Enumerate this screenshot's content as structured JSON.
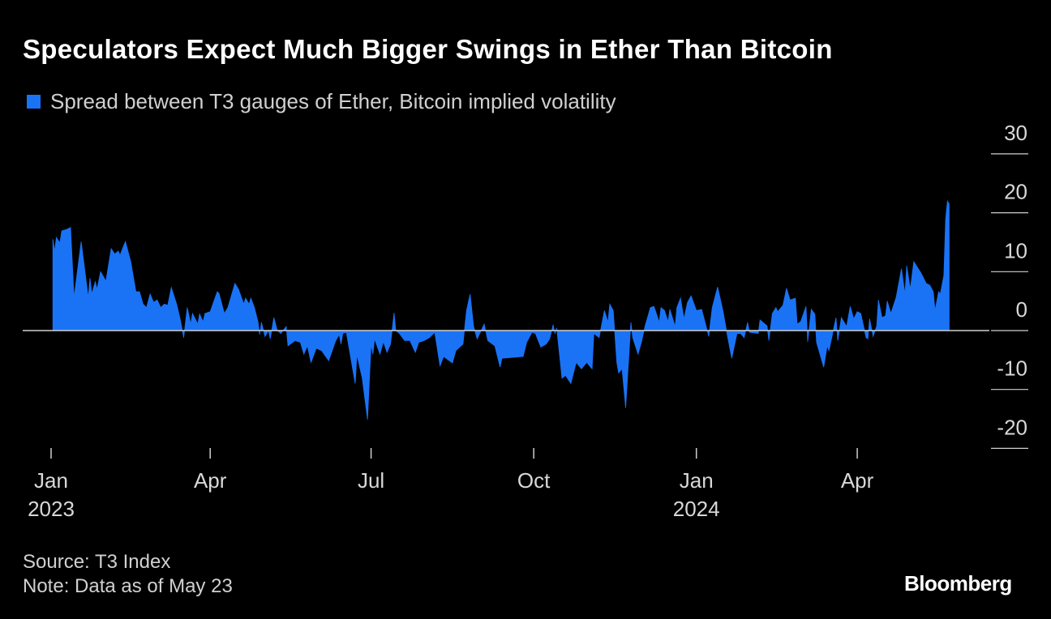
{
  "title": "Speculators Expect Much Bigger Swings in Ether Than Bitcoin",
  "source": "Source: T3 Index",
  "note": "Note: Data as of May 23",
  "logo": "Bloomberg",
  "colors": {
    "series": "#1a73f5",
    "background": "#000000",
    "zero_line": "#cfcfcf"
  },
  "chart_data": {
    "type": "area",
    "title": "Speculators Expect Much Bigger Swings in Ether Than Bitcoin",
    "legend": [
      {
        "name": "Spread between T3 gauges of Ether, Bitcoin implied volatility",
        "color": "#1a73f5"
      }
    ],
    "legend_placement": "top-left",
    "ylim": [
      -20,
      30
    ],
    "yticks": [
      30,
      20,
      10,
      0,
      -10,
      -20
    ],
    "ytick_labels": [
      "30",
      "20",
      "10",
      "0",
      "-10",
      "-20"
    ],
    "y_axis_side": "right",
    "xlim": [
      "2023-01-01",
      "2024-06-15"
    ],
    "xticks": [
      {
        "date": "2023-01-01",
        "label": "Jan",
        "year": "2023"
      },
      {
        "date": "2023-04-01",
        "label": "Apr",
        "year": ""
      },
      {
        "date": "2023-07-01",
        "label": "Jul",
        "year": ""
      },
      {
        "date": "2023-10-01",
        "label": "Oct",
        "year": ""
      },
      {
        "date": "2024-01-01",
        "label": "Jan",
        "year": "2024"
      },
      {
        "date": "2024-04-01",
        "label": "Apr",
        "year": ""
      }
    ],
    "grid": false,
    "series": [
      {
        "name": "Spread between T3 gauges of Ether, Bitcoin implied volatility",
        "points": [
          [
            "2023-01-02",
            15.5
          ],
          [
            "2023-01-03",
            13.5
          ],
          [
            "2023-01-04",
            15.8
          ],
          [
            "2023-01-06",
            14.9
          ],
          [
            "2023-01-07",
            16.9
          ],
          [
            "2023-01-10",
            17.2
          ],
          [
            "2023-01-12",
            17.5
          ],
          [
            "2023-01-14",
            5.6
          ],
          [
            "2023-01-18",
            15.1
          ],
          [
            "2023-01-22",
            5.6
          ],
          [
            "2023-01-23",
            8.9
          ],
          [
            "2023-01-24",
            6.2
          ],
          [
            "2023-01-26",
            8.3
          ],
          [
            "2023-01-27",
            7
          ],
          [
            "2023-01-29",
            10
          ],
          [
            "2023-02-01",
            8.4
          ],
          [
            "2023-02-04",
            13.9
          ],
          [
            "2023-02-06",
            13
          ],
          [
            "2023-02-08",
            13.5
          ],
          [
            "2023-02-09",
            12.8
          ],
          [
            "2023-02-12",
            15.1
          ],
          [
            "2023-02-15",
            11.8
          ],
          [
            "2023-02-18",
            6.6
          ],
          [
            "2023-02-20",
            6.6
          ],
          [
            "2023-02-22",
            4.5
          ],
          [
            "2023-02-24",
            3.9
          ],
          [
            "2023-02-26",
            6.2
          ],
          [
            "2023-02-28",
            4.8
          ],
          [
            "2023-03-02",
            5.2
          ],
          [
            "2023-03-04",
            3.9
          ],
          [
            "2023-03-06",
            4.5
          ],
          [
            "2023-03-08",
            4.3
          ],
          [
            "2023-03-10",
            7.3
          ],
          [
            "2023-03-13",
            4.5
          ],
          [
            "2023-03-15",
            2
          ],
          [
            "2023-03-17",
            -1.2
          ],
          [
            "2023-03-19",
            3.9
          ],
          [
            "2023-03-21",
            1.1
          ],
          [
            "2023-03-22",
            2.9
          ],
          [
            "2023-03-25",
            1.1
          ],
          [
            "2023-03-26",
            2.8
          ],
          [
            "2023-03-28",
            1.5
          ],
          [
            "2023-03-29",
            2.9
          ],
          [
            "2023-04-01",
            3.2
          ],
          [
            "2023-04-05",
            6.6
          ],
          [
            "2023-04-06",
            6.3
          ],
          [
            "2023-04-09",
            2.9
          ],
          [
            "2023-04-11",
            3.9
          ],
          [
            "2023-04-15",
            8
          ],
          [
            "2023-04-17",
            7
          ],
          [
            "2023-04-20",
            4.5
          ],
          [
            "2023-04-21",
            5.5
          ],
          [
            "2023-04-23",
            4.5
          ],
          [
            "2023-04-24",
            5.5
          ],
          [
            "2023-04-26",
            3.9
          ],
          [
            "2023-04-28",
            1.5
          ],
          [
            "2023-04-29",
            -0.7
          ],
          [
            "2023-04-30",
            1.4
          ],
          [
            "2023-05-02",
            -1
          ],
          [
            "2023-05-04",
            0
          ],
          [
            "2023-05-05",
            -1.4
          ],
          [
            "2023-05-07",
            2.2
          ],
          [
            "2023-05-09",
            0
          ],
          [
            "2023-05-11",
            -0.5
          ],
          [
            "2023-05-14",
            0.7
          ],
          [
            "2023-05-15",
            -2.6
          ],
          [
            "2023-05-19",
            -1.7
          ],
          [
            "2023-05-22",
            -2
          ],
          [
            "2023-05-24",
            -4
          ],
          [
            "2023-05-26",
            -2.6
          ],
          [
            "2023-05-28",
            -5.4
          ],
          [
            "2023-05-31",
            -3
          ],
          [
            "2023-06-03",
            -3.4
          ],
          [
            "2023-06-07",
            -5.1
          ],
          [
            "2023-06-11",
            -1.7
          ],
          [
            "2023-06-13",
            -0.7
          ],
          [
            "2023-06-14",
            -2.3
          ],
          [
            "2023-06-15",
            -0.5
          ],
          [
            "2023-06-17",
            -0.3
          ],
          [
            "2023-06-22",
            -9
          ],
          [
            "2023-06-23",
            -4.1
          ],
          [
            "2023-06-26",
            -8.1
          ],
          [
            "2023-06-29",
            -15.1
          ],
          [
            "2023-07-01",
            -2.3
          ],
          [
            "2023-07-02",
            -4
          ],
          [
            "2023-07-03",
            -1.4
          ],
          [
            "2023-07-06",
            -4
          ],
          [
            "2023-07-08",
            -1.9
          ],
          [
            "2023-07-10",
            -3.7
          ],
          [
            "2023-07-12",
            -2.3
          ],
          [
            "2023-07-14",
            3
          ],
          [
            "2023-07-15",
            0
          ],
          [
            "2023-07-17",
            -0.5
          ],
          [
            "2023-07-20",
            -1.7
          ],
          [
            "2023-07-23",
            -1.7
          ],
          [
            "2023-07-26",
            -3.7
          ],
          [
            "2023-07-28",
            -2
          ],
          [
            "2023-07-31",
            -1.7
          ],
          [
            "2023-08-03",
            -1.2
          ],
          [
            "2023-08-06",
            -0.3
          ],
          [
            "2023-08-09",
            -6
          ],
          [
            "2023-08-11",
            -4.4
          ],
          [
            "2023-08-16",
            -5.5
          ],
          [
            "2023-08-18",
            -3.4
          ],
          [
            "2023-08-22",
            -2.3
          ],
          [
            "2023-08-24",
            3.4
          ],
          [
            "2023-08-26",
            6.2
          ],
          [
            "2023-08-28",
            0.7
          ],
          [
            "2023-08-30",
            -1.4
          ],
          [
            "2023-09-03",
            1.1
          ],
          [
            "2023-09-05",
            -1.7
          ],
          [
            "2023-09-09",
            -2.6
          ],
          [
            "2023-09-12",
            -6.2
          ],
          [
            "2023-09-13",
            -4.7
          ],
          [
            "2023-09-25",
            -4.4
          ],
          [
            "2023-09-27",
            -2
          ],
          [
            "2023-09-30",
            -0.3
          ],
          [
            "2023-10-02",
            -0.5
          ],
          [
            "2023-10-05",
            -2.8
          ],
          [
            "2023-10-08",
            -2.3
          ],
          [
            "2023-10-10",
            -1.4
          ],
          [
            "2023-10-12",
            1
          ],
          [
            "2023-10-13",
            -0.5
          ],
          [
            "2023-10-14",
            0.4
          ],
          [
            "2023-10-17",
            -8.1
          ],
          [
            "2023-10-19",
            -7.6
          ],
          [
            "2023-10-22",
            -9
          ],
          [
            "2023-10-25",
            -5.4
          ],
          [
            "2023-10-28",
            -6.5
          ],
          [
            "2023-10-31",
            -5.4
          ],
          [
            "2023-11-03",
            -6.5
          ],
          [
            "2023-11-04",
            -0.5
          ],
          [
            "2023-11-07",
            -1.2
          ],
          [
            "2023-11-10",
            3.4
          ],
          [
            "2023-11-12",
            1.4
          ],
          [
            "2023-11-13",
            4.5
          ],
          [
            "2023-11-15",
            3.4
          ],
          [
            "2023-11-17",
            -5.4
          ],
          [
            "2023-11-18",
            -7.2
          ],
          [
            "2023-11-20",
            -6.5
          ],
          [
            "2023-11-22",
            -13.1
          ],
          [
            "2023-11-25",
            1.4
          ],
          [
            "2023-11-26",
            -1.2
          ],
          [
            "2023-11-29",
            -4
          ],
          [
            "2023-12-01",
            -1.9
          ],
          [
            "2023-12-03",
            0.8
          ],
          [
            "2023-12-06",
            3.9
          ],
          [
            "2023-12-08",
            4.1
          ],
          [
            "2023-12-11",
            1.4
          ],
          [
            "2023-12-12",
            3.9
          ],
          [
            "2023-12-14",
            3.4
          ],
          [
            "2023-12-16",
            1.5
          ],
          [
            "2023-12-17",
            3.6
          ],
          [
            "2023-12-20",
            0.7
          ],
          [
            "2023-12-21",
            3.9
          ],
          [
            "2023-12-23",
            5.5
          ],
          [
            "2023-12-25",
            2
          ],
          [
            "2023-12-27",
            4.8
          ],
          [
            "2023-12-29",
            5.9
          ],
          [
            "2024-01-01",
            3.4
          ],
          [
            "2024-01-04",
            3.6
          ],
          [
            "2024-01-08",
            -1
          ],
          [
            "2024-01-10",
            3.9
          ],
          [
            "2024-01-13",
            7.4
          ],
          [
            "2024-01-16",
            3.4
          ],
          [
            "2024-01-18",
            0
          ],
          [
            "2024-01-21",
            -4.7
          ],
          [
            "2024-01-24",
            -0.5
          ],
          [
            "2024-01-26",
            -0.5
          ],
          [
            "2024-01-28",
            -1.2
          ],
          [
            "2024-01-30",
            1.4
          ],
          [
            "2024-01-31",
            -0.3
          ],
          [
            "2024-02-05",
            -0.5
          ],
          [
            "2024-02-06",
            1.8
          ],
          [
            "2024-02-10",
            0.8
          ],
          [
            "2024-02-11",
            -1.7
          ],
          [
            "2024-02-13",
            2.9
          ],
          [
            "2024-02-15",
            3.9
          ],
          [
            "2024-02-16",
            3.2
          ],
          [
            "2024-02-19",
            4.3
          ],
          [
            "2024-02-21",
            7.2
          ],
          [
            "2024-02-23",
            5.2
          ],
          [
            "2024-02-26",
            5.5
          ],
          [
            "2024-02-27",
            1.1
          ],
          [
            "2024-02-29",
            1.5
          ],
          [
            "2024-03-03",
            4.1
          ],
          [
            "2024-03-04",
            -1.9
          ],
          [
            "2024-03-06",
            3.6
          ],
          [
            "2024-03-08",
            2.8
          ],
          [
            "2024-03-09",
            -2
          ],
          [
            "2024-03-13",
            -6.2
          ],
          [
            "2024-03-15",
            -2.6
          ],
          [
            "2024-03-16",
            -3.4
          ],
          [
            "2024-03-20",
            2.2
          ],
          [
            "2024-03-21",
            -1.7
          ],
          [
            "2024-03-23",
            2.2
          ],
          [
            "2024-03-26",
            0.7
          ],
          [
            "2024-03-28",
            4.1
          ],
          [
            "2024-03-30",
            2
          ],
          [
            "2024-04-01",
            3.2
          ],
          [
            "2024-04-03",
            2.9
          ],
          [
            "2024-04-06",
            -1.2
          ],
          [
            "2024-04-07",
            -1.4
          ],
          [
            "2024-04-08",
            2
          ],
          [
            "2024-04-10",
            -1
          ],
          [
            "2024-04-12",
            0.8
          ],
          [
            "2024-04-13",
            5.2
          ],
          [
            "2024-04-15",
            2.2
          ],
          [
            "2024-04-17",
            2.5
          ],
          [
            "2024-04-18",
            5
          ],
          [
            "2024-04-20",
            2.9
          ],
          [
            "2024-04-23",
            5.6
          ],
          [
            "2024-04-26",
            10.5
          ],
          [
            "2024-04-28",
            6.2
          ],
          [
            "2024-04-29",
            11
          ],
          [
            "2024-05-01",
            7
          ],
          [
            "2024-05-03",
            11.7
          ],
          [
            "2024-05-07",
            9.8
          ],
          [
            "2024-05-10",
            8
          ],
          [
            "2024-05-12",
            7.7
          ],
          [
            "2024-05-14",
            6.6
          ],
          [
            "2024-05-15",
            3.4
          ],
          [
            "2024-05-17",
            6.6
          ],
          [
            "2024-05-18",
            6.2
          ],
          [
            "2024-05-20",
            9.4
          ],
          [
            "2024-05-21",
            19
          ],
          [
            "2024-05-22",
            22
          ],
          [
            "2024-05-23",
            21.5
          ]
        ]
      }
    ]
  }
}
